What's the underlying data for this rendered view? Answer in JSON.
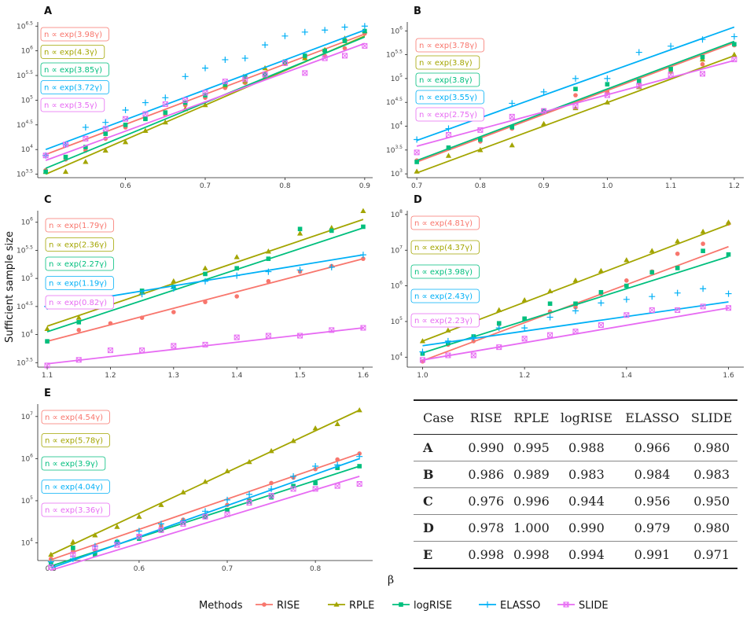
{
  "methods": [
    {
      "name": "RISE",
      "color": "#F8766D",
      "marker": "circle"
    },
    {
      "name": "RPLE",
      "color": "#A3A500",
      "marker": "triangle"
    },
    {
      "name": "logRISE",
      "color": "#00BF7D",
      "marker": "square"
    },
    {
      "name": "ELASSO",
      "color": "#00B0F6",
      "marker": "plus"
    },
    {
      "name": "SLIDE",
      "color": "#E76BF3",
      "marker": "boxx"
    }
  ],
  "y_axis_title": "Sufficient sample size",
  "x_axis_title": "β",
  "legend_title": "Methods",
  "chart_data": [
    {
      "type": "scatter",
      "panel": "A",
      "xlim": [
        0.49,
        0.91
      ],
      "ylim": [
        3.43,
        6.52
      ],
      "xticks": [
        0.6,
        0.7,
        0.8,
        0.9
      ],
      "xtick_labels": [
        "0.6",
        "0.7",
        "0.8",
        "0.9"
      ],
      "yticks": [
        3.5,
        4,
        4.5,
        5,
        5.5,
        6,
        6.5
      ],
      "ytick_labels": [
        "10^3.5",
        "10^4",
        "10^4.5",
        "10^5",
        "10^5.5",
        "10^6",
        "10^6.5"
      ],
      "x": [
        0.5,
        0.525,
        0.55,
        0.575,
        0.6,
        0.625,
        0.65,
        0.675,
        0.7,
        0.725,
        0.75,
        0.775,
        0.8,
        0.825,
        0.85,
        0.875,
        0.9
      ],
      "series": [
        {
          "name": "RISE",
          "fit": [
            3.9,
            6.34
          ],
          "label": "n ∝ exp(3.98γ)",
          "points": [
            3.58,
            3.8,
            3.98,
            4.22,
            4.45,
            4.62,
            4.7,
            4.9,
            5.05,
            5.25,
            5.35,
            5.45,
            5.75,
            5.85,
            5.9,
            6.05,
            6.35
          ]
        },
        {
          "name": "RPLE",
          "fit": [
            3.5,
            6.3
          ],
          "label": "n ∝ exp(4.3γ)",
          "points": [
            3.55,
            3.55,
            3.75,
            3.98,
            4.15,
            4.38,
            4.55,
            4.82,
            4.9,
            5.3,
            5.38,
            5.65,
            5.75,
            5.85,
            6.02,
            6.25,
            6.4
          ]
        },
        {
          "name": "logRISE",
          "fit": [
            3.62,
            6.28
          ],
          "label": "n ∝ exp(3.85γ)",
          "points": [
            3.55,
            3.85,
            4.05,
            4.32,
            4.5,
            4.62,
            4.75,
            4.95,
            5.1,
            5.32,
            5.48,
            5.52,
            5.78,
            5.9,
            6.0,
            6.2,
            6.4
          ]
        },
        {
          "name": "ELASSO",
          "fit": [
            4.0,
            6.42
          ],
          "label": "n ∝ exp(3.72γ)",
          "points": [
            3.88,
            4.1,
            4.45,
            4.55,
            4.8,
            4.95,
            5.05,
            5.48,
            5.65,
            5.82,
            5.85,
            6.12,
            6.3,
            6.38,
            6.42,
            6.48,
            6.5
          ]
        },
        {
          "name": "SLIDE",
          "fit": [
            3.78,
            6.15
          ],
          "label": "n ∝ exp(3.5γ)",
          "points": [
            3.88,
            4.1,
            4.22,
            4.42,
            4.62,
            4.72,
            4.92,
            5.0,
            5.15,
            5.38,
            5.42,
            5.52,
            5.75,
            5.55,
            5.85,
            5.9,
            6.1
          ]
        }
      ]
    },
    {
      "type": "scatter",
      "panel": "B",
      "xlim": [
        0.685,
        1.215
      ],
      "ylim": [
        2.92,
        6.12
      ],
      "xticks": [
        0.7,
        0.8,
        0.9,
        1.0,
        1.1,
        1.2
      ],
      "xtick_labels": [
        "0.7",
        "0.8",
        "0.9",
        "1.0",
        "1.1",
        "1.2"
      ],
      "yticks": [
        3,
        3.5,
        4,
        4.5,
        5,
        5.5,
        6
      ],
      "ytick_labels": [
        "10^3",
        "10^3.5",
        "10^4",
        "10^4.5",
        "10^5",
        "10^5.5",
        "10^6"
      ],
      "x": [
        0.7,
        0.75,
        0.8,
        0.85,
        0.9,
        0.95,
        1.0,
        1.05,
        1.1,
        1.15,
        1.2
      ],
      "series": [
        {
          "name": "RISE",
          "fit": [
            3.25,
            5.75
          ],
          "label": "n ∝ exp(3.78γ)",
          "points": [
            3.28,
            3.55,
            3.68,
            3.95,
            4.32,
            4.65,
            4.72,
            4.92,
            5.15,
            5.3,
            5.7
          ]
        },
        {
          "name": "RPLE",
          "fit": [
            3.02,
            5.48
          ],
          "label": "n ∝ exp(3.8γ)",
          "points": [
            3.05,
            3.38,
            3.5,
            3.6,
            4.05,
            4.38,
            4.5,
            4.82,
            5.15,
            5.4,
            5.5
          ]
        },
        {
          "name": "logRISE",
          "fit": [
            3.28,
            5.78
          ],
          "label": "n ∝ exp(3.8γ)",
          "points": [
            3.25,
            3.55,
            3.72,
            3.98,
            4.32,
            4.78,
            4.88,
            4.95,
            5.2,
            5.45,
            5.72
          ]
        },
        {
          "name": "ELASSO",
          "fit": [
            3.7,
            6.08
          ],
          "label": "n ∝ exp(3.55γ)",
          "points": [
            3.72,
            3.95,
            4.2,
            4.48,
            4.72,
            5.0,
            5.0,
            5.55,
            5.68,
            5.82,
            5.88
          ]
        },
        {
          "name": "SLIDE",
          "fit": [
            3.58,
            5.38
          ],
          "label": "n ∝ exp(2.75γ)",
          "points": [
            3.45,
            3.82,
            3.92,
            4.2,
            4.32,
            4.42,
            4.65,
            4.85,
            5.08,
            5.1,
            5.4
          ]
        }
      ]
    },
    {
      "type": "scatter",
      "panel": "C",
      "xlim": [
        1.085,
        1.615
      ],
      "ylim": [
        3.42,
        6.15
      ],
      "xticks": [
        1.1,
        1.2,
        1.3,
        1.4,
        1.5,
        1.6
      ],
      "xtick_labels": [
        "1.1",
        "1.2",
        "1.3",
        "1.4",
        "1.5",
        "1.6"
      ],
      "yticks": [
        3.5,
        4,
        4.5,
        5,
        5.5,
        6
      ],
      "ytick_labels": [
        "10^3.5",
        "10^4",
        "10^4.5",
        "10^5",
        "10^5.5",
        "10^6"
      ],
      "x": [
        1.1,
        1.15,
        1.2,
        1.25,
        1.3,
        1.35,
        1.4,
        1.45,
        1.5,
        1.55,
        1.6
      ],
      "series": [
        {
          "name": "RISE",
          "fit": [
            3.88,
            5.35
          ],
          "label": "n ∝ exp(1.79γ)",
          "points": [
            3.88,
            4.08,
            4.2,
            4.3,
            4.4,
            4.58,
            4.68,
            4.95,
            5.12,
            5.22,
            5.35
          ]
        },
        {
          "name": "RPLE",
          "fit": [
            4.15,
            6.05
          ],
          "label": "n ∝ exp(2.36γ)",
          "points": [
            4.1,
            4.3,
            4.55,
            4.75,
            4.95,
            5.18,
            5.38,
            5.48,
            5.8,
            5.9,
            6.2
          ]
        },
        {
          "name": "logRISE",
          "fit": [
            4.05,
            5.9
          ],
          "label": "n ∝ exp(2.27γ)",
          "points": [
            3.88,
            4.22,
            4.52,
            4.78,
            4.85,
            5.08,
            5.18,
            5.35,
            5.88,
            5.85,
            5.92
          ]
        },
        {
          "name": "ELASSO",
          "fit": [
            4.5,
            5.42
          ],
          "label": "n ∝ exp(1.19γ)",
          "points": [
            4.5,
            4.55,
            4.62,
            4.72,
            4.82,
            4.95,
            5.05,
            5.12,
            5.15,
            5.2,
            5.42
          ]
        },
        {
          "name": "SLIDE",
          "fit": [
            3.48,
            4.12
          ],
          "label": "n ∝ exp(0.82γ)",
          "points": [
            3.45,
            3.55,
            3.72,
            3.72,
            3.8,
            3.82,
            3.95,
            3.98,
            3.98,
            4.08,
            4.12
          ]
        }
      ]
    },
    {
      "type": "scatter",
      "panel": "D",
      "xlim": [
        0.97,
        1.63
      ],
      "ylim": [
        3.72,
        8.02
      ],
      "xticks": [
        1.0,
        1.2,
        1.4,
        1.6
      ],
      "xtick_labels": [
        "1.0",
        "1.2",
        "1.4",
        "1.6"
      ],
      "yticks": [
        4,
        5,
        6,
        7,
        8
      ],
      "ytick_labels": [
        "10^4",
        "10^5",
        "10^6",
        "10^7",
        "10^8"
      ],
      "x": [
        1.0,
        1.05,
        1.1,
        1.15,
        1.2,
        1.25,
        1.3,
        1.35,
        1.4,
        1.45,
        1.5,
        1.55,
        1.6
      ],
      "series": [
        {
          "name": "RISE",
          "fit": [
            3.9,
            7.1
          ],
          "label": "n ∝ exp(4.81γ)",
          "points": [
            3.88,
            4.35,
            4.45,
            4.92,
            5.08,
            5.28,
            5.4,
            5.78,
            6.15,
            6.4,
            6.9,
            7.18,
            7.75
          ]
        },
        {
          "name": "RPLE",
          "fit": [
            4.45,
            7.72
          ],
          "label": "n ∝ exp(4.37γ)",
          "points": [
            4.45,
            4.75,
            5.05,
            5.32,
            5.6,
            5.85,
            6.15,
            6.42,
            6.72,
            6.98,
            7.25,
            7.52,
            7.78
          ]
        },
        {
          "name": "logRISE",
          "fit": [
            4.12,
            6.82
          ],
          "label": "n ∝ exp(3.98γ)",
          "points": [
            4.1,
            4.4,
            4.58,
            4.95,
            5.08,
            5.5,
            5.5,
            5.82,
            6.0,
            6.38,
            6.5,
            6.98,
            6.88
          ]
        },
        {
          "name": "ELASSO",
          "fit": [
            4.32,
            5.55
          ],
          "label": "n ∝ exp(2.43γ)",
          "points": [
            4.15,
            4.45,
            4.55,
            4.82,
            4.82,
            5.12,
            5.3,
            5.52,
            5.62,
            5.7,
            5.8,
            5.92,
            5.78
          ]
        },
        {
          "name": "SLIDE",
          "fit": [
            3.92,
            5.38
          ],
          "label": "n ∝ exp(2.23γ)",
          "points": [
            3.92,
            4.05,
            4.05,
            4.28,
            4.52,
            4.62,
            4.72,
            4.9,
            5.18,
            5.32,
            5.32,
            5.42,
            5.38
          ]
        }
      ]
    },
    {
      "type": "scatter",
      "panel": "E",
      "xlim": [
        0.485,
        0.865
      ],
      "ylim": [
        3.58,
        7.22
      ],
      "xticks": [
        0.5,
        0.6,
        0.7,
        0.8
      ],
      "xtick_labels": [
        "0.5",
        "0.6",
        "0.7",
        "0.8"
      ],
      "yticks": [
        4,
        5,
        6,
        7
      ],
      "ytick_labels": [
        "10^4",
        "10^5",
        "10^6",
        "10^7"
      ],
      "x": [
        0.5,
        0.525,
        0.55,
        0.575,
        0.6,
        0.625,
        0.65,
        0.675,
        0.7,
        0.725,
        0.75,
        0.775,
        0.8,
        0.825,
        0.85
      ],
      "series": [
        {
          "name": "RISE",
          "fit": [
            3.6,
            6.12
          ],
          "label": "n ∝ exp(4.54γ)",
          "points": [
            3.62,
            3.8,
            3.82,
            4.02,
            4.15,
            4.4,
            4.55,
            4.65,
            4.9,
            5.02,
            5.42,
            5.55,
            5.75,
            5.98,
            6.12
          ]
        },
        {
          "name": "RPLE",
          "fit": [
            3.72,
            7.15
          ],
          "label": "n ∝ exp(5.78γ)",
          "points": [
            3.72,
            4.02,
            4.18,
            4.38,
            4.62,
            4.9,
            5.2,
            5.45,
            5.7,
            5.92,
            6.18,
            6.42,
            6.72,
            6.82,
            7.15
          ]
        },
        {
          "name": "logRISE",
          "fit": [
            3.45,
            5.82
          ],
          "label": "n ∝ exp(3.9γ)",
          "points": [
            3.5,
            3.88,
            3.72,
            4.02,
            4.1,
            4.3,
            4.48,
            4.62,
            4.78,
            4.98,
            5.08,
            5.35,
            5.42,
            5.78,
            5.82
          ]
        },
        {
          "name": "ELASSO",
          "fit": [
            3.4,
            6.0
          ],
          "label": "n ∝ exp(4.04γ)",
          "points": [
            3.55,
            3.62,
            3.92,
            4.02,
            4.28,
            4.45,
            4.52,
            4.75,
            5.02,
            5.15,
            5.28,
            5.58,
            5.82,
            5.85,
            6.05
          ]
        },
        {
          "name": "SLIDE",
          "fit": [
            3.35,
            5.58
          ],
          "label": "n ∝ exp(3.36γ)",
          "points": [
            3.42,
            3.72,
            3.88,
            3.95,
            4.15,
            4.3,
            4.45,
            4.62,
            4.68,
            4.95,
            5.12,
            5.28,
            5.28,
            5.35,
            5.4
          ]
        }
      ]
    }
  ],
  "table": {
    "headers": [
      "Case",
      "RISE",
      "RPLE",
      "logRISE",
      "ELASSO",
      "SLIDE"
    ],
    "rows": [
      [
        "A",
        "0.990",
        "0.995",
        "0.988",
        "0.966",
        "0.980"
      ],
      [
        "B",
        "0.986",
        "0.989",
        "0.983",
        "0.984",
        "0.983"
      ],
      [
        "C",
        "0.976",
        "0.996",
        "0.944",
        "0.956",
        "0.950"
      ],
      [
        "D",
        "0.978",
        "1.000",
        "0.990",
        "0.979",
        "0.980"
      ],
      [
        "E",
        "0.998",
        "0.998",
        "0.994",
        "0.991",
        "0.971"
      ]
    ]
  }
}
